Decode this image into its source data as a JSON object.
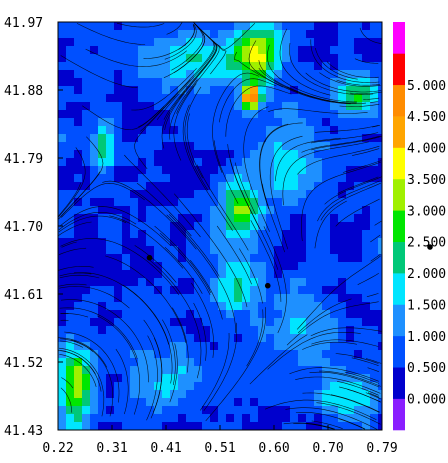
{
  "chart_data": {
    "type": "heatmap",
    "title": "",
    "xlabel": "",
    "ylabel": "",
    "xlim": [
      0.22,
      0.79
    ],
    "ylim": [
      41.43,
      41.97
    ],
    "x_ticks": [
      "0.22",
      "0.31",
      "0.41",
      "0.51",
      "0.60",
      "0.70",
      "0.79"
    ],
    "y_ticks": [
      "41.43",
      "41.52",
      "41.61",
      "41.70",
      "41.79",
      "41.88",
      "41.97"
    ],
    "colorbar": {
      "levels": [
        {
          "color": "#8a1eff"
        },
        {
          "label": "0.000",
          "color": "#0000cd"
        },
        {
          "label": "0.500",
          "color": "#0050ff"
        },
        {
          "label": "1.000",
          "color": "#1e90ff"
        },
        {
          "label": "1.500",
          "color": "#00e5ff"
        },
        {
          "label": "2.000",
          "color": "#00c878"
        },
        {
          "label": "2.500",
          "color": "#00e600"
        },
        {
          "label": "3.000",
          "color": "#a0f000"
        },
        {
          "label": "3.500",
          "color": "#ffff00"
        },
        {
          "label": "4.000",
          "color": "#ffa500"
        },
        {
          "label": "4.500",
          "color": "#ff8c00"
        },
        {
          "label": "5.000",
          "color": "#ff0000"
        },
        {
          "color": "#ff00ff"
        }
      ]
    },
    "markers": [
      {
        "x": 0.381,
        "y": 41.658
      },
      {
        "x": 0.589,
        "y": 41.621
      }
    ],
    "hotspots": [
      {
        "x": 0.3,
        "y": 41.8,
        "value": 1.6,
        "sx": 0.015,
        "sy": 0.03
      },
      {
        "x": 0.46,
        "y": 41.92,
        "value": 1.5,
        "sx": 0.06,
        "sy": 0.025
      },
      {
        "x": 0.57,
        "y": 41.93,
        "value": 2.8,
        "sx": 0.03,
        "sy": 0.03
      },
      {
        "x": 0.56,
        "y": 41.87,
        "value": 4.6,
        "sx": 0.012,
        "sy": 0.012
      },
      {
        "x": 0.54,
        "y": 41.72,
        "value": 2.3,
        "sx": 0.025,
        "sy": 0.03
      },
      {
        "x": 0.53,
        "y": 41.62,
        "value": 1.6,
        "sx": 0.03,
        "sy": 0.03
      },
      {
        "x": 0.62,
        "y": 41.78,
        "value": 1.3,
        "sx": 0.04,
        "sy": 0.04
      },
      {
        "x": 0.25,
        "y": 41.49,
        "value": 3.0,
        "sx": 0.02,
        "sy": 0.035
      },
      {
        "x": 0.75,
        "y": 41.87,
        "value": 2.1,
        "sx": 0.03,
        "sy": 0.02
      },
      {
        "x": 0.73,
        "y": 41.47,
        "value": 1.5,
        "sx": 0.04,
        "sy": 0.02
      },
      {
        "x": 0.42,
        "y": 41.5,
        "value": 1.1,
        "sx": 0.05,
        "sy": 0.03
      },
      {
        "x": 0.66,
        "y": 41.56,
        "value": 1.0,
        "sx": 0.05,
        "sy": 0.04
      }
    ]
  }
}
